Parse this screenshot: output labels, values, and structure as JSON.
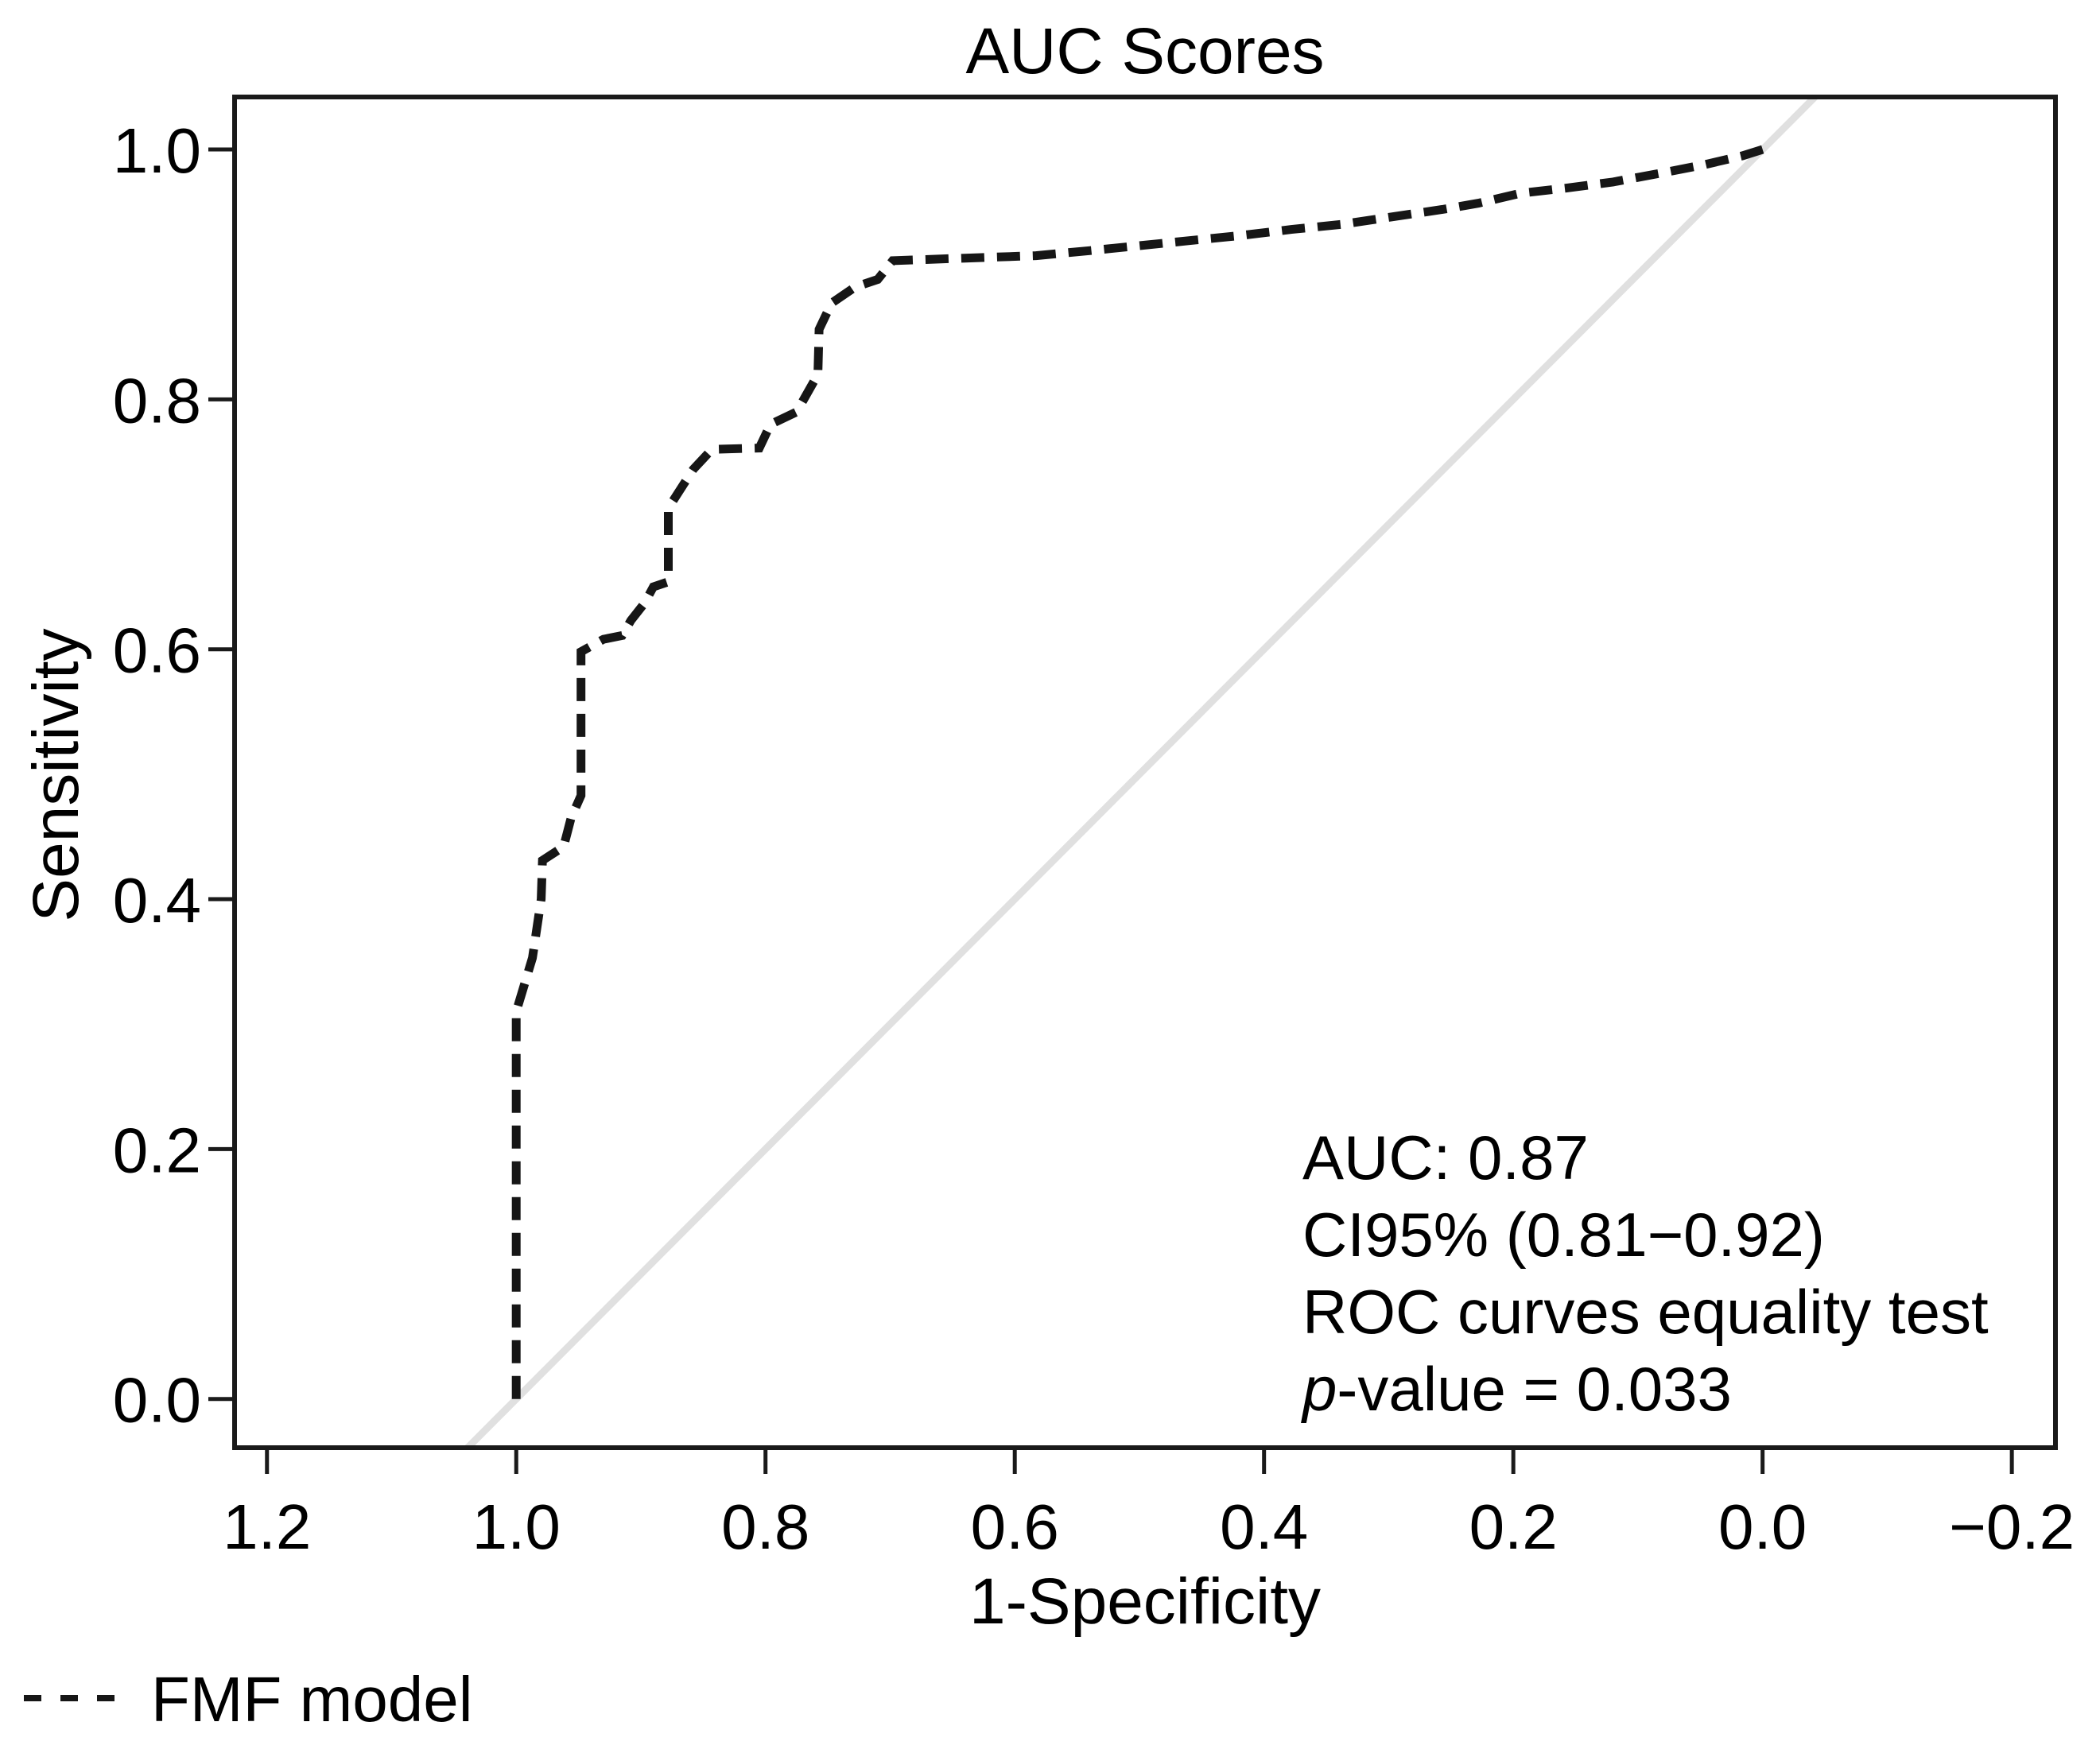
{
  "chart_data": {
    "type": "line",
    "title": "AUC Scores",
    "xlabel": "1-Specificity",
    "ylabel": "Sensitivity",
    "x_axis_reversed": true,
    "grid": false,
    "xlim_left_to_right": [
      1.226,
      -0.235
    ],
    "ylim_bottom_to_top": [
      -0.039,
      1.042
    ],
    "x_ticks": [
      1.2,
      1.0,
      0.8,
      0.6,
      0.4,
      0.2,
      0.0,
      -0.2
    ],
    "x_tick_labels": [
      "1.2",
      "1.0",
      "0.8",
      "0.6",
      "0.4",
      "0.2",
      "0.0",
      "−0.2"
    ],
    "y_ticks": [
      1.0,
      0.8,
      0.6,
      0.4,
      0.2,
      0.0
    ],
    "y_tick_labels": [
      "1.0",
      "0.8",
      "0.6",
      "0.4",
      "0.2",
      "0.0"
    ],
    "series": [
      {
        "name": "FMF model",
        "style": "dashed",
        "color": "#161616",
        "points": [
          [
            1.0,
            0.0
          ],
          [
            1.0,
            0.31
          ],
          [
            0.987,
            0.353
          ],
          [
            0.98,
            0.4
          ],
          [
            0.979,
            0.431
          ],
          [
            0.962,
            0.442
          ],
          [
            0.956,
            0.465
          ],
          [
            0.948,
            0.483
          ],
          [
            0.948,
            0.598
          ],
          [
            0.93,
            0.608
          ],
          [
            0.915,
            0.611
          ],
          [
            0.908,
            0.623
          ],
          [
            0.897,
            0.637
          ],
          [
            0.89,
            0.65
          ],
          [
            0.878,
            0.654
          ],
          [
            0.878,
            0.713
          ],
          [
            0.858,
            0.744
          ],
          [
            0.843,
            0.76
          ],
          [
            0.805,
            0.761
          ],
          [
            0.796,
            0.78
          ],
          [
            0.775,
            0.79
          ],
          [
            0.758,
            0.82
          ],
          [
            0.757,
            0.856
          ],
          [
            0.747,
            0.877
          ],
          [
            0.728,
            0.89
          ],
          [
            0.71,
            0.896
          ],
          [
            0.698,
            0.911
          ],
          [
            0.64,
            0.913
          ],
          [
            0.583,
            0.915
          ],
          [
            0.54,
            0.919
          ],
          [
            0.5,
            0.923
          ],
          [
            0.46,
            0.927
          ],
          [
            0.42,
            0.931
          ],
          [
            0.378,
            0.936
          ],
          [
            0.338,
            0.94
          ],
          [
            0.298,
            0.946
          ],
          [
            0.257,
            0.952
          ],
          [
            0.228,
            0.957
          ],
          [
            0.194,
            0.965
          ],
          [
            0.158,
            0.969
          ],
          [
            0.12,
            0.974
          ],
          [
            0.082,
            0.981
          ],
          [
            0.046,
            0.988
          ],
          [
            0.016,
            0.995
          ],
          [
            0.0,
            1.0
          ]
        ]
      }
    ],
    "reference_line": {
      "name": "chance-diagonal",
      "color": "#e0e0e0",
      "from": [
        1.039,
        -0.039
      ],
      "to": [
        -0.042,
        1.042
      ]
    },
    "annotation": {
      "lines": [
        "AUC: 0.87",
        "CI95% (0.81−0.92)",
        "ROC curves equality test"
      ],
      "p_line": {
        "italic": "p",
        "rest": "-value = 0.033"
      }
    },
    "legend": {
      "position": "bottom-left",
      "entries": [
        {
          "label": "FMF model",
          "style": "dashed"
        }
      ]
    },
    "stats": {
      "auc": 0.87,
      "ci95_low": 0.81,
      "ci95_high": 0.92,
      "p_value": 0.033
    }
  },
  "colors": {
    "curve": "#161616",
    "reference_line": "#e0e0e0",
    "frame": "#1a1a1a",
    "text": "#000000",
    "background": "#ffffff"
  }
}
